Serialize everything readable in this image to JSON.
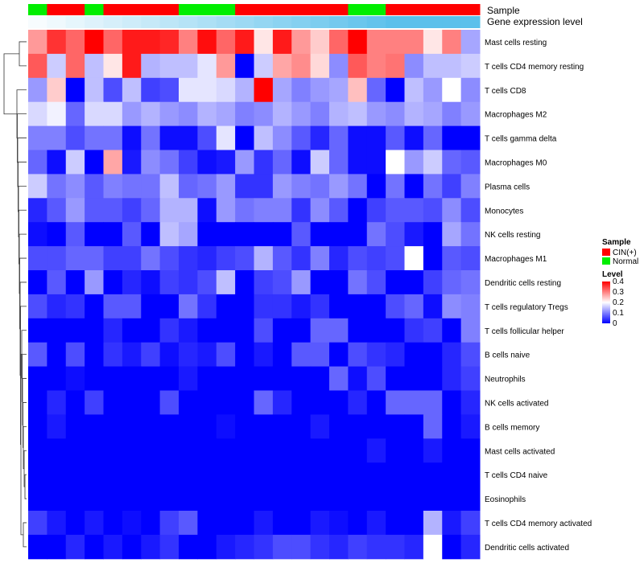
{
  "chart_data": {
    "type": "heatmap",
    "title": "",
    "annotation_labels": {
      "sample": "Sample",
      "gene_expression": "Gene expression level"
    },
    "sample_annotation": [
      "Normal",
      "CIN(+)",
      "CIN(+)",
      "Normal",
      "CIN(+)",
      "CIN(+)",
      "CIN(+)",
      "CIN(+)",
      "Normal",
      "Normal",
      "Normal",
      "CIN(+)",
      "CIN(+)",
      "CIN(+)",
      "CIN(+)",
      "CIN(+)",
      "CIN(+)",
      "Normal",
      "Normal",
      "CIN(+)",
      "CIN(+)",
      "CIN(+)",
      "CIN(+)",
      "CIN(+)"
    ],
    "sample_colors": {
      "CIN(+)": "#ff0000",
      "Normal": "#00ee00"
    },
    "gene_expression_level": [
      0.05,
      0.1,
      0.15,
      0.2,
      0.25,
      0.3,
      0.35,
      0.4,
      0.45,
      0.5,
      0.55,
      0.6,
      0.65,
      0.7,
      0.75,
      0.8,
      0.85,
      0.9,
      0.95,
      1.0,
      1.0,
      1.0,
      1.0,
      1.0
    ],
    "gene_expression_colors": {
      "low": "#ffffff",
      "high": "#5bc0eb"
    },
    "rows": [
      "Mast cells resting",
      "T cells CD4 memory resting",
      "T cells CD8",
      "Macrophages M2",
      "T cells gamma delta",
      "Macrophages M0",
      "Plasma cells",
      "Monocytes",
      "NK cells resting",
      "Macrophages M1",
      "Dendritic cells resting",
      "T cells regulatory  Tregs",
      "T cells follicular helper",
      "B cells naive",
      "Neutrophils",
      "NK cells activated",
      "B cells memory",
      "Mast cells activated",
      "T cells CD4 naive",
      "Eosinophils",
      "T cells CD4 memory activated",
      "Dendritic cells activated"
    ],
    "values": [
      [
        0.28,
        0.36,
        0.32,
        0.4,
        0.32,
        0.38,
        0.38,
        0.37,
        0.3,
        0.39,
        0.32,
        0.38,
        0.22,
        0.38,
        0.28,
        0.24,
        0.32,
        0.4,
        0.3,
        0.3,
        0.3,
        0.22,
        0.3,
        0.13
      ],
      [
        0.33,
        0.16,
        0.32,
        0.15,
        0.22,
        0.38,
        0.14,
        0.15,
        0.15,
        0.18,
        0.28,
        0.0,
        0.16,
        0.27,
        0.29,
        0.23,
        0.11,
        0.33,
        0.3,
        0.31,
        0.11,
        0.15,
        0.15,
        0.16
      ],
      [
        0.12,
        0.24,
        0.0,
        0.15,
        0.06,
        0.15,
        0.05,
        0.06,
        0.18,
        0.18,
        0.17,
        0.14,
        0.4,
        0.13,
        0.1,
        0.12,
        0.13,
        0.25,
        0.08,
        0.0,
        0.15,
        0.12,
        0.2,
        0.11
      ],
      [
        0.17,
        0.19,
        0.08,
        0.17,
        0.17,
        0.12,
        0.14,
        0.12,
        0.11,
        0.14,
        0.13,
        0.1,
        0.11,
        0.14,
        0.12,
        0.1,
        0.14,
        0.15,
        0.12,
        0.11,
        0.14,
        0.13,
        0.1,
        0.12
      ],
      [
        0.1,
        0.1,
        0.06,
        0.09,
        0.09,
        0.01,
        0.09,
        0.01,
        0.01,
        0.06,
        0.18,
        0.0,
        0.15,
        0.11,
        0.07,
        0.03,
        0.08,
        0.01,
        0.01,
        0.07,
        0.01,
        0.08,
        0.0,
        0.0
      ],
      [
        0.08,
        0.01,
        0.16,
        0.0,
        0.27,
        0.02,
        0.11,
        0.09,
        0.05,
        0.01,
        0.02,
        0.12,
        0.04,
        0.08,
        0.01,
        0.16,
        0.08,
        0.01,
        0.01,
        0.2,
        0.12,
        0.16,
        0.08,
        0.07
      ],
      [
        0.16,
        0.09,
        0.11,
        0.07,
        0.1,
        0.09,
        0.09,
        0.15,
        0.08,
        0.09,
        0.12,
        0.04,
        0.04,
        0.12,
        0.1,
        0.09,
        0.12,
        0.09,
        0.0,
        0.09,
        0.0,
        0.09,
        0.05,
        0.1
      ],
      [
        0.03,
        0.07,
        0.12,
        0.07,
        0.07,
        0.05,
        0.08,
        0.14,
        0.14,
        0.01,
        0.12,
        0.09,
        0.1,
        0.1,
        0.04,
        0.11,
        0.07,
        0.0,
        0.05,
        0.07,
        0.07,
        0.06,
        0.11,
        0.06
      ],
      [
        0.01,
        0.0,
        0.07,
        0.0,
        0.0,
        0.07,
        0.0,
        0.15,
        0.13,
        0.0,
        0.0,
        0.0,
        0.0,
        0.0,
        0.07,
        0.0,
        0.0,
        0.0,
        0.09,
        0.06,
        0.02,
        0.0,
        0.13,
        0.09
      ],
      [
        0.06,
        0.06,
        0.08,
        0.08,
        0.05,
        0.05,
        0.09,
        0.06,
        0.04,
        0.03,
        0.05,
        0.06,
        0.14,
        0.07,
        0.04,
        0.1,
        0.03,
        0.06,
        0.05,
        0.06,
        0.2,
        0.0,
        0.07,
        0.06
      ],
      [
        0.0,
        0.07,
        0.0,
        0.12,
        0.0,
        0.03,
        0.01,
        0.05,
        0.04,
        0.06,
        0.15,
        0.0,
        0.05,
        0.06,
        0.12,
        0.0,
        0.0,
        0.09,
        0.06,
        0.0,
        0.0,
        0.05,
        0.08,
        0.09
      ],
      [
        0.06,
        0.03,
        0.04,
        0.0,
        0.07,
        0.07,
        0.0,
        0.0,
        0.09,
        0.04,
        0.0,
        0.0,
        0.04,
        0.04,
        0.02,
        0.04,
        0.0,
        0.0,
        0.0,
        0.06,
        0.08,
        0.01,
        0.11,
        0.1
      ],
      [
        0.0,
        0.0,
        0.0,
        0.0,
        0.03,
        0.0,
        0.0,
        0.04,
        0.02,
        0.0,
        0.0,
        0.0,
        0.06,
        0.0,
        0.0,
        0.08,
        0.08,
        0.0,
        0.0,
        0.0,
        0.04,
        0.05,
        0.0,
        0.1
      ],
      [
        0.07,
        0.0,
        0.06,
        0.0,
        0.04,
        0.02,
        0.05,
        0.01,
        0.03,
        0.02,
        0.06,
        0.0,
        0.02,
        0.0,
        0.07,
        0.07,
        0.0,
        0.06,
        0.04,
        0.03,
        0.0,
        0.0,
        0.03,
        0.06
      ],
      [
        0.0,
        0.0,
        0.01,
        0.0,
        0.0,
        0.0,
        0.0,
        0.0,
        0.02,
        0.0,
        0.0,
        0.0,
        0.0,
        0.0,
        0.0,
        0.0,
        0.08,
        0.01,
        0.06,
        0.0,
        0.0,
        0.0,
        0.03,
        0.05
      ],
      [
        0.0,
        0.03,
        0.0,
        0.05,
        0.0,
        0.0,
        0.0,
        0.06,
        0.0,
        0.0,
        0.0,
        0.0,
        0.08,
        0.03,
        0.0,
        0.0,
        0.0,
        0.03,
        0.0,
        0.08,
        0.08,
        0.08,
        0.0,
        0.03
      ],
      [
        0.0,
        0.02,
        0.0,
        0.0,
        0.0,
        0.0,
        0.0,
        0.0,
        0.0,
        0.0,
        0.01,
        0.0,
        0.0,
        0.0,
        0.0,
        0.02,
        0.0,
        0.0,
        0.0,
        0.0,
        0.0,
        0.08,
        0.0,
        0.02
      ],
      [
        0.0,
        0.0,
        0.0,
        0.0,
        0.0,
        0.0,
        0.0,
        0.0,
        0.0,
        0.0,
        0.0,
        0.0,
        0.0,
        0.0,
        0.0,
        0.0,
        0.0,
        0.0,
        0.02,
        0.0,
        0.0,
        0.02,
        0.0,
        0.0
      ],
      [
        0.0,
        0.0,
        0.0,
        0.0,
        0.0,
        0.0,
        0.0,
        0.0,
        0.0,
        0.0,
        0.0,
        0.0,
        0.0,
        0.0,
        0.0,
        0.0,
        0.0,
        0.0,
        0.0,
        0.0,
        0.0,
        0.0,
        0.0,
        0.0
      ],
      [
        0.0,
        0.0,
        0.0,
        0.0,
        0.0,
        0.0,
        0.0,
        0.0,
        0.0,
        0.0,
        0.0,
        0.0,
        0.0,
        0.0,
        0.0,
        0.0,
        0.0,
        0.0,
        0.0,
        0.0,
        0.0,
        0.0,
        0.0,
        0.0
      ],
      [
        0.05,
        0.02,
        0.0,
        0.02,
        0.0,
        0.01,
        0.0,
        0.05,
        0.07,
        0.0,
        0.0,
        0.0,
        0.02,
        0.0,
        0.0,
        0.02,
        0.01,
        0.0,
        0.02,
        0.0,
        0.0,
        0.14,
        0.02,
        0.05
      ],
      [
        0.0,
        0.0,
        0.03,
        0.0,
        0.02,
        0.0,
        0.02,
        0.04,
        0.0,
        0.0,
        0.02,
        0.03,
        0.04,
        0.06,
        0.06,
        0.04,
        0.03,
        0.05,
        0.04,
        0.04,
        0.03,
        0.2,
        0.0,
        0.03
      ]
    ],
    "color_scale": {
      "min": 0,
      "mid": 0.2,
      "max": 0.4,
      "low_color": "#0000ff",
      "mid_color": "#ffffff",
      "high_color": "#ff0000"
    },
    "legend": {
      "sample_title": "Sample",
      "sample_items": [
        "CIN(+)",
        "Normal"
      ],
      "level_title": "Level",
      "level_ticks": [
        "0.4",
        "0.3",
        "0.2",
        "0.1",
        "0"
      ]
    },
    "row_dendrogram": true,
    "grid": false,
    "legend_position": "right"
  }
}
